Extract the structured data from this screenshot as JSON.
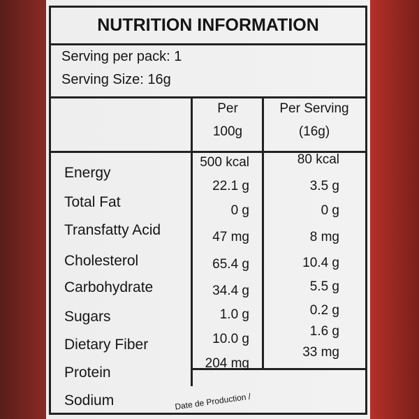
{
  "header": {
    "title": "NUTRITION INFORMATION"
  },
  "serving": {
    "per_pack": "Serving per pack: 1",
    "size": "Serving Size: 16g"
  },
  "table": {
    "columns": [
      [
        "Per",
        "100g"
      ],
      [
        "Per Serving",
        "(16g)"
      ]
    ],
    "rows": [
      [
        "Energy",
        "500 kcal",
        "80 kcal"
      ],
      [
        "Total Fat",
        "22.1 g",
        "3.5 g"
      ],
      [
        "Transfatty Acid",
        "0 g",
        "0 g"
      ],
      [
        "Cholesterol",
        "47 mg",
        "8 mg"
      ],
      [
        "Carbohydrate",
        "65.4 g",
        "10.4 g"
      ],
      [
        "Sugars",
        "34.4 g",
        "5.5 g"
      ],
      [
        "Dietary Fiber",
        "1.0 g",
        "0.2 g"
      ],
      [
        "Protein",
        "10.0 g",
        "1.6 g"
      ],
      [
        "Sodium",
        "204 mg",
        "33 mg"
      ]
    ]
  },
  "footer": {
    "text": "Date de Production /"
  }
}
